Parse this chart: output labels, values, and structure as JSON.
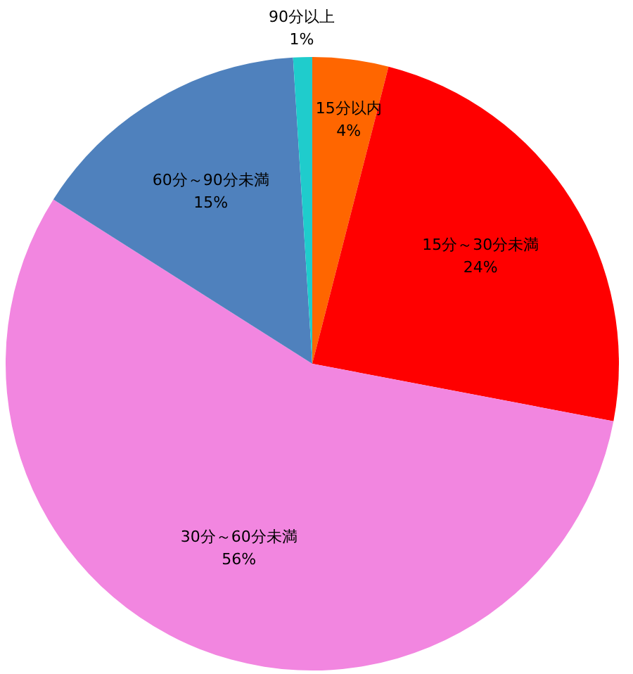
{
  "chart_data": {
    "type": "pie",
    "categories": [
      "15分以内",
      "15分～30分未満",
      "30分～60分未満",
      "60分～90分未満",
      "90分以上"
    ],
    "values": [
      4,
      24,
      56,
      15,
      1
    ],
    "value_labels": [
      "4%",
      "24%",
      "56%",
      "15%",
      "1%"
    ],
    "colors": [
      "#ff6600",
      "#ff0000",
      "#f286e0",
      "#4f81bd",
      "#1fcccc"
    ],
    "legend": false
  }
}
